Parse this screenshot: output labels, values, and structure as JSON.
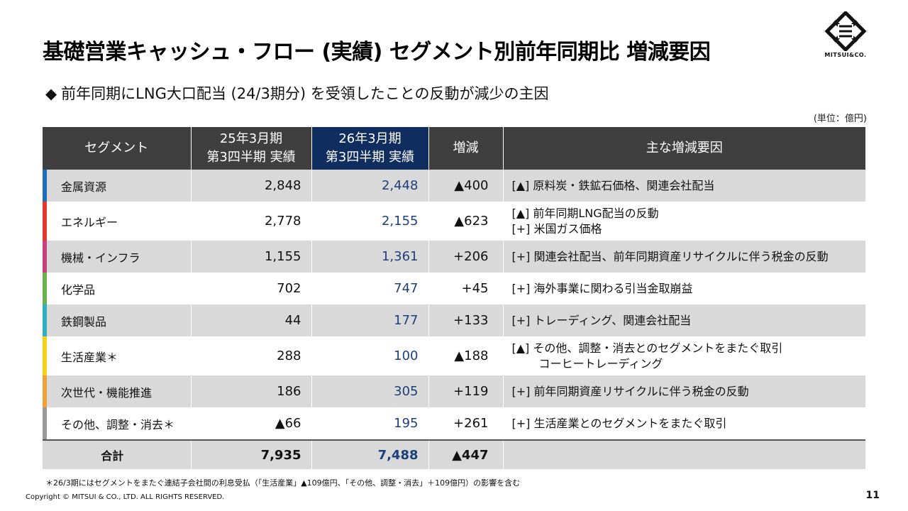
{
  "title": "基礎営業キャッシュ・フロー (実績) セグメント別前年同期比 増減要因",
  "logo": {
    "text": "MITSUI&CO."
  },
  "subtitle": {
    "bullet": "◆",
    "text": "前年同期にLNG大口配当 (24/3期分) を受領したことの反動が減少の主因"
  },
  "unit": "(単位：億円)",
  "table": {
    "headers": {
      "segment": "セグメント",
      "prev_line1": "25年3月期",
      "prev_line2": "第3四半期 実績",
      "cur_line1": "26年3月期",
      "cur_line2": "第3四半期 実績",
      "diff": "増減",
      "reason": "主な増減要因"
    },
    "rows": [
      {
        "segment": "金属資源",
        "color": "#1f6fb8",
        "prev": "2,848",
        "cur": "2,448",
        "diff": "▲400",
        "reason1": "[▲] 原料炭・鉄鉱石価格、関連会社配当",
        "reason2": ""
      },
      {
        "segment": "エネルギー",
        "color": "#e03a2e",
        "prev": "2,778",
        "cur": "2,155",
        "diff": "▲623",
        "reason1": "[▲] 前年同期LNG配当の反動",
        "reason2": "[+] 米国ガス価格"
      },
      {
        "segment": "機械・インフラ",
        "color": "#c8407e",
        "prev": "1,155",
        "cur": "1,361",
        "diff": "+206",
        "reason1": "[+] 関連会社配当、前年同期資産リサイクルに伴う税金の反動",
        "reason2": ""
      },
      {
        "segment": "化学品",
        "color": "#6ab04c",
        "prev": "702",
        "cur": "747",
        "diff": "+45",
        "reason1": "[+] 海外事業に関わる引当金取崩益",
        "reason2": ""
      },
      {
        "segment": "鉄鋼製品",
        "color": "#2fb0c0",
        "prev": "44",
        "cur": "177",
        "diff": "+133",
        "reason1": "[+] トレーディング、関連会社配当",
        "reason2": ""
      },
      {
        "segment": "生活産業＊",
        "color": "#f2d21a",
        "prev": "288",
        "cur": "100",
        "diff": "▲188",
        "reason1": "[▲] その他、調整・消去とのセグメントをまたぐ取引",
        "reason2": "コーヒートレーディング"
      },
      {
        "segment": "次世代・機能推進",
        "color": "#f0a23a",
        "prev": "186",
        "cur": "305",
        "diff": "+119",
        "reason1": "[+] 前年同期資産リサイクルに伴う税金の反動",
        "reason2": ""
      },
      {
        "segment": "その他、調整・消去＊",
        "color": "#9a9a9a",
        "prev": "▲66",
        "cur": "195",
        "diff": "+261",
        "reason1": "[+] 生活産業とのセグメントをまたぐ取引",
        "reason2": ""
      }
    ],
    "total": {
      "label": "合計",
      "prev": "7,935",
      "cur": "7,488",
      "diff": "▲447"
    }
  },
  "footnote": "＊26/3期にはセグメントをまたぐ連結子会社間の利息受払（「生活産業」▲109億円、「その他、調整・消去」＋109億円）の影響を含む",
  "copyright": "Copyright © MITSUI & CO., LTD. ALL RIGHTS RESERVED.",
  "page_number": "11"
}
